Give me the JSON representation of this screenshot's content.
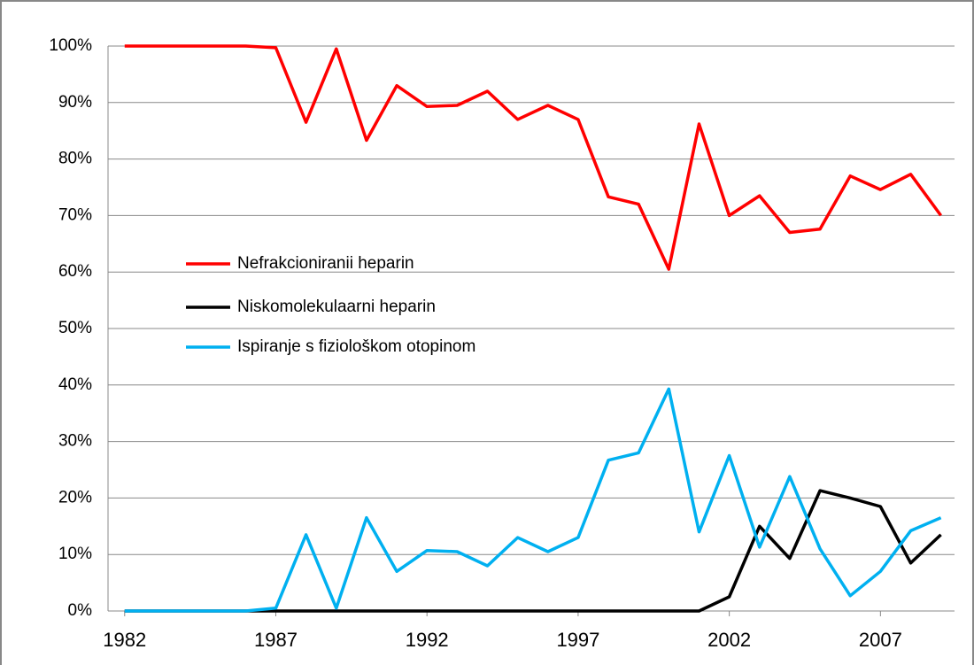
{
  "chart_data": {
    "type": "line",
    "x": [
      1982,
      1983,
      1984,
      1985,
      1986,
      1987,
      1988,
      1989,
      1990,
      1991,
      1992,
      1993,
      1994,
      1995,
      1996,
      1997,
      1998,
      1999,
      2000,
      2001,
      2002,
      2003,
      2004,
      2005,
      2006,
      2007,
      2008,
      2009
    ],
    "series": [
      {
        "name": "Nefrakcioniranii heparin",
        "color": "#ff0000",
        "values": [
          100,
          100,
          100,
          100,
          100,
          99.7,
          86.5,
          99.5,
          83.3,
          93,
          89.3,
          89.5,
          92,
          87,
          89.5,
          87,
          73.3,
          72,
          60.5,
          86.2,
          70,
          73.5,
          67,
          67.6,
          77,
          74.6,
          77.3,
          70
        ]
      },
      {
        "name": "Niskomolekulaarni heparin",
        "color": "#000000",
        "values": [
          0,
          0,
          0,
          0,
          0,
          0,
          0,
          0,
          0,
          0,
          0,
          0,
          0,
          0,
          0,
          0,
          0,
          0,
          0,
          0,
          2.5,
          15,
          9.3,
          21.3,
          20,
          18.5,
          8.5,
          13.5
        ]
      },
      {
        "name": "Ispiranje s fiziološkom otopinom",
        "color": "#00b0f0",
        "values": [
          0,
          0,
          0,
          0,
          0,
          0.5,
          13.5,
          0.5,
          16.5,
          7,
          10.7,
          10.5,
          8,
          13,
          10.5,
          13,
          26.7,
          28,
          39.3,
          14,
          27.5,
          11.3,
          23.8,
          11,
          2.7,
          7,
          14.2,
          16.5
        ]
      }
    ],
    "xlim": [
      1981.45,
      2009.45
    ],
    "xticks": [
      1982,
      1987,
      1992,
      1997,
      2002,
      2007
    ],
    "ylim": [
      0,
      100
    ],
    "yticks": [
      {
        "value": 0,
        "label": "0%"
      },
      {
        "value": 10,
        "label": "10%"
      },
      {
        "value": 20,
        "label": "20%"
      },
      {
        "value": 30,
        "label": "30%"
      },
      {
        "value": 40,
        "label": "40%"
      },
      {
        "value": 50,
        "label": "50%"
      },
      {
        "value": 60,
        "label": "60%"
      },
      {
        "value": 70,
        "label": "70%"
      },
      {
        "value": 80,
        "label": "80%"
      },
      {
        "value": 90,
        "label": "90%"
      },
      {
        "value": 100,
        "label": "100%"
      }
    ],
    "grid": true,
    "legend": "left"
  }
}
